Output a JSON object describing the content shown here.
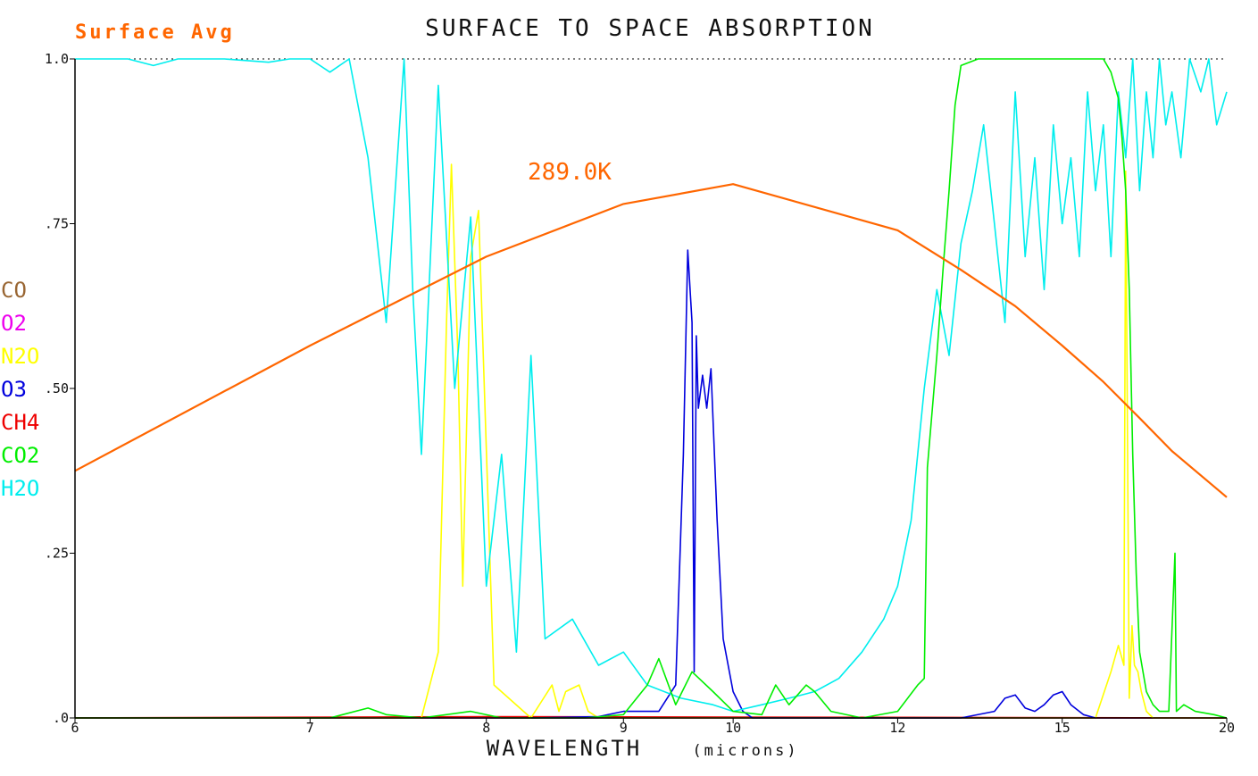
{
  "chart_data": {
    "type": "line",
    "title": "SURFACE TO SPACE ABSORPTION",
    "subtitle": "Surface Avg",
    "xlabel": "WAVELENGTH",
    "xlabel_unit": "(microns)",
    "ylabel": "",
    "xlim": [
      6,
      20
    ],
    "ylim": [
      0,
      1
    ],
    "x_scale": "reciprocal",
    "x_ticks": [
      6,
      7,
      8,
      9,
      10,
      12,
      15,
      20
    ],
    "x_tick_labels": [
      "6",
      "7",
      "8",
      "9",
      "10",
      "12",
      "15",
      "20"
    ],
    "y_ticks": [
      0,
      0.25,
      0.5,
      0.75,
      1.0
    ],
    "y_tick_labels": [
      ".0",
      ".25",
      ".50",
      ".75",
      "1.0"
    ],
    "top_reference_line": 1.0,
    "legend_position": "left",
    "legend": [
      "CO",
      "O2",
      "N2O",
      "O3",
      "CH4",
      "CO2",
      "H2O"
    ],
    "annotation": {
      "text": "289.0K",
      "x": 10.06,
      "y": 0.82
    },
    "colors": {
      "CO": "#996633",
      "O2": "#ee00ee",
      "N2O": "#ffff00",
      "O3": "#0000dd",
      "CH4": "#ee0000",
      "CO2": "#00ee00",
      "H2O": "#00eeee",
      "planck": "#ff6600",
      "subtitle": "#ff6600",
      "annotation": "#ff6600"
    },
    "series": [
      {
        "name": "planck",
        "x": [
          6,
          7,
          8,
          9,
          10,
          12,
          13,
          14,
          15,
          16,
          17,
          18,
          20
        ],
        "y": [
          0.375,
          0.565,
          0.7,
          0.78,
          0.81,
          0.74,
          0.68,
          0.625,
          0.565,
          0.51,
          0.455,
          0.405,
          0.335
        ]
      },
      {
        "name": "CO",
        "x": [
          6,
          20
        ],
        "y": [
          0,
          0
        ]
      },
      {
        "name": "O2",
        "x": [
          6,
          20
        ],
        "y": [
          0,
          0
        ]
      },
      {
        "name": "CH4",
        "x": [
          6,
          8,
          20
        ],
        "y": [
          0,
          0.002,
          0
        ]
      },
      {
        "name": "N2O",
        "x": [
          6,
          7.6,
          7.7,
          7.75,
          7.78,
          7.82,
          7.85,
          7.9,
          7.95,
          8.05,
          8.3,
          8.45,
          8.5,
          8.55,
          8.65,
          8.72,
          8.8,
          9.0,
          15.8,
          16.2,
          16.4,
          16.55,
          16.6,
          16.7,
          16.78,
          16.85,
          16.95,
          17.05,
          17.2,
          17.4,
          20
        ],
        "y": [
          0,
          0,
          0.1,
          0.6,
          0.84,
          0.55,
          0.2,
          0.7,
          0.77,
          0.05,
          0,
          0.05,
          0.01,
          0.04,
          0.05,
          0.01,
          0,
          0,
          0,
          0.07,
          0.11,
          0.08,
          0.83,
          0.03,
          0.14,
          0.08,
          0.07,
          0.04,
          0.01,
          0,
          0
        ]
      },
      {
        "name": "O3",
        "x": [
          8.3,
          8.8,
          9.0,
          9.3,
          9.45,
          9.52,
          9.56,
          9.6,
          9.62,
          9.64,
          9.66,
          9.7,
          9.74,
          9.78,
          9.84,
          9.9,
          10.0,
          10.1,
          10.2,
          13.0,
          13.6,
          13.8,
          14.0,
          14.2,
          14.4,
          14.6,
          14.8,
          15.0,
          15.2,
          15.5,
          15.8
        ],
        "y": [
          0,
          0.002,
          0.01,
          0.01,
          0.05,
          0.4,
          0.71,
          0.6,
          0.07,
          0.58,
          0.47,
          0.52,
          0.47,
          0.53,
          0.3,
          0.12,
          0.04,
          0.01,
          0,
          0,
          0.01,
          0.03,
          0.035,
          0.015,
          0.01,
          0.02,
          0.035,
          0.04,
          0.02,
          0.005,
          0
        ]
      },
      {
        "name": "CO2",
        "x": [
          6,
          7.1,
          7.3,
          7.4,
          7.6,
          7.9,
          8.1,
          8.7,
          9.0,
          9.2,
          9.3,
          9.45,
          9.6,
          9.8,
          10.0,
          10.3,
          10.45,
          10.6,
          10.8,
          10.9,
          11.1,
          11.5,
          12.0,
          12.3,
          12.4,
          12.45,
          12.6,
          12.7,
          12.8,
          12.9,
          13.0,
          13.3,
          13.6,
          13.8,
          14.0,
          15.0,
          15.8,
          16.0,
          16.2,
          16.4,
          16.5,
          16.6,
          16.7,
          16.8,
          16.9,
          17.0,
          17.2,
          17.4,
          17.6,
          17.9,
          18.1,
          18.15,
          18.4,
          18.8,
          19.5,
          20
        ],
        "y": [
          0,
          0,
          0.015,
          0.005,
          0,
          0.01,
          0,
          0,
          0.005,
          0.05,
          0.09,
          0.02,
          0.07,
          0.04,
          0.01,
          0.005,
          0.05,
          0.02,
          0.05,
          0.04,
          0.01,
          0,
          0.01,
          0.05,
          0.06,
          0.38,
          0.55,
          0.68,
          0.8,
          0.93,
          0.99,
          1.0,
          1.0,
          1.0,
          1.0,
          1.0,
          1.0,
          1.0,
          0.98,
          0.94,
          0.88,
          0.8,
          0.65,
          0.4,
          0.22,
          0.1,
          0.04,
          0.02,
          0.01,
          0.01,
          0.25,
          0.01,
          0.02,
          0.01,
          0.005,
          0
        ]
      },
      {
        "name": "H2O",
        "x": [
          6,
          6.2,
          6.3,
          6.4,
          6.6,
          6.8,
          6.9,
          7.0,
          7.1,
          7.2,
          7.3,
          7.4,
          7.5,
          7.55,
          7.6,
          7.7,
          7.8,
          7.9,
          8.0,
          8.1,
          8.2,
          8.3,
          8.4,
          8.6,
          8.8,
          9.0,
          9.2,
          9.5,
          9.8,
          10.0,
          10.3,
          10.6,
          10.9,
          11.2,
          11.5,
          11.8,
          12.0,
          12.2,
          12.4,
          12.6,
          12.8,
          13.0,
          13.2,
          13.4,
          13.6,
          13.8,
          14.0,
          14.2,
          14.4,
          14.6,
          14.8,
          15.0,
          15.2,
          15.4,
          15.6,
          15.8,
          16.0,
          16.2,
          16.4,
          16.6,
          16.8,
          17.0,
          17.2,
          17.4,
          17.6,
          17.8,
          18.0,
          18.3,
          18.6,
          19.0,
          19.3,
          19.6,
          20
        ],
        "y": [
          1.0,
          1.0,
          0.99,
          1.0,
          1.0,
          0.995,
          1.0,
          1.0,
          0.98,
          1.0,
          0.85,
          0.6,
          1.0,
          0.65,
          0.4,
          0.96,
          0.5,
          0.76,
          0.2,
          0.4,
          0.1,
          0.55,
          0.12,
          0.15,
          0.08,
          0.1,
          0.05,
          0.03,
          0.02,
          0.01,
          0.02,
          0.03,
          0.04,
          0.06,
          0.1,
          0.15,
          0.2,
          0.3,
          0.5,
          0.65,
          0.55,
          0.72,
          0.8,
          0.9,
          0.75,
          0.6,
          0.95,
          0.7,
          0.85,
          0.65,
          0.9,
          0.75,
          0.85,
          0.7,
          0.95,
          0.8,
          0.9,
          0.7,
          0.95,
          0.85,
          1.0,
          0.8,
          0.95,
          0.85,
          1.0,
          0.9,
          0.95,
          0.85,
          1.0,
          0.95,
          1.0,
          0.9,
          0.95
        ]
      }
    ]
  }
}
